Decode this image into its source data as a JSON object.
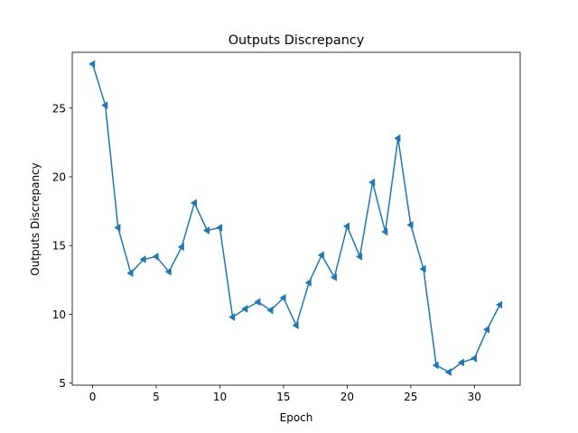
{
  "chart_data": {
    "type": "line",
    "title": "Outputs Discrepancy",
    "xlabel": "Epoch",
    "ylabel": "Outputs Discrepancy",
    "xlim": [
      -1.6,
      33.6
    ],
    "ylim": [
      4.85,
      29.05
    ],
    "xticks": [
      0,
      5,
      10,
      15,
      20,
      25,
      30
    ],
    "yticks": [
      5,
      10,
      15,
      20,
      25
    ],
    "grid": false,
    "series": [
      {
        "color": "#1f77b4",
        "marker": "triangle-left",
        "x": [
          0,
          1,
          2,
          3,
          4,
          5,
          6,
          7,
          8,
          9,
          10,
          11,
          12,
          13,
          14,
          15,
          16,
          17,
          18,
          19,
          20,
          21,
          22,
          23,
          24,
          25,
          26,
          27,
          28,
          29,
          30,
          31,
          32
        ],
        "y": [
          28.2,
          25.2,
          16.3,
          13.0,
          14.0,
          14.2,
          13.1,
          14.9,
          18.1,
          16.1,
          16.3,
          9.8,
          10.4,
          10.9,
          10.3,
          11.2,
          9.2,
          12.3,
          14.3,
          12.7,
          16.4,
          14.2,
          19.6,
          16.0,
          22.8,
          16.5,
          13.3,
          6.3,
          5.8,
          6.5,
          6.8,
          8.9,
          10.7
        ]
      }
    ]
  }
}
